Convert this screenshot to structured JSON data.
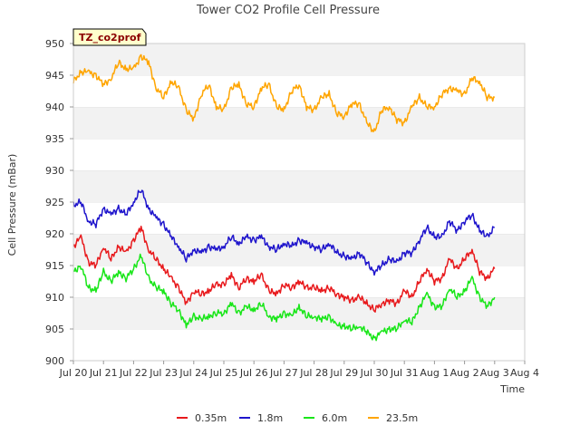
{
  "chart_data": {
    "type": "line",
    "title": "Tower CO2 Profile Cell Pressure",
    "xlabel": "Time",
    "ylabel": "Cell Pressure (mBar)",
    "tag": "TZ_co2prof",
    "ylim": [
      900,
      950
    ],
    "xlim": [
      0,
      15
    ],
    "grid": "horizontal bands",
    "legend_position": "bottom",
    "yticks": [
      900,
      905,
      910,
      915,
      920,
      925,
      930,
      935,
      940,
      945,
      950
    ],
    "xticks": [
      {
        "x": 0,
        "label": "Jul 20"
      },
      {
        "x": 1,
        "label": "Jul 21"
      },
      {
        "x": 2,
        "label": "Jul 22"
      },
      {
        "x": 3,
        "label": "Jul 23"
      },
      {
        "x": 4,
        "label": "Jul 24"
      },
      {
        "x": 5,
        "label": "Jul 25"
      },
      {
        "x": 6,
        "label": "Jul 26"
      },
      {
        "x": 7,
        "label": "Jul 27"
      },
      {
        "x": 8,
        "label": "Jul 28"
      },
      {
        "x": 9,
        "label": "Jul 29"
      },
      {
        "x": 10,
        "label": "Jul 30"
      },
      {
        "x": 11,
        "label": "Jul 31"
      },
      {
        "x": 12,
        "label": "Aug 1"
      },
      {
        "x": 13,
        "label": "Aug 2"
      },
      {
        "x": 14,
        "label": "Aug 3"
      },
      {
        "x": 15,
        "label": "Aug 4"
      }
    ],
    "series": [
      {
        "name": "0.35m",
        "color": "#e8191c",
        "x": [
          0.0,
          0.25,
          0.5,
          0.75,
          1.0,
          1.25,
          1.5,
          1.75,
          2.0,
          2.25,
          2.5,
          2.75,
          3.0,
          3.25,
          3.5,
          3.75,
          4.0,
          4.25,
          4.5,
          4.75,
          5.0,
          5.25,
          5.5,
          5.75,
          6.0,
          6.25,
          6.5,
          6.75,
          7.0,
          7.25,
          7.5,
          7.75,
          8.0,
          8.25,
          8.5,
          8.75,
          9.0,
          9.25,
          9.5,
          9.75,
          10.0,
          10.25,
          10.5,
          10.75,
          11.0,
          11.25,
          11.5,
          11.75,
          12.0,
          12.25,
          12.5,
          12.75,
          13.0,
          13.25,
          13.5,
          13.75,
          14.0
        ],
        "values": [
          918.0,
          919.5,
          915.5,
          915.0,
          918.0,
          916.0,
          918.0,
          917.0,
          919.0,
          921.0,
          917.5,
          916.0,
          914.5,
          913.0,
          911.5,
          909.0,
          911.0,
          910.5,
          911.0,
          912.0,
          912.0,
          913.5,
          911.5,
          913.0,
          912.5,
          913.5,
          911.0,
          910.5,
          912.0,
          911.5,
          912.5,
          911.5,
          911.5,
          911.0,
          911.5,
          910.5,
          910.0,
          909.5,
          910.0,
          909.0,
          908.0,
          909.0,
          909.5,
          909.0,
          911.0,
          910.0,
          912.5,
          914.5,
          912.5,
          913.0,
          916.0,
          914.5,
          916.0,
          917.5,
          914.0,
          913.0,
          914.5
        ]
      },
      {
        "name": "1.8m",
        "color": "#1f15cc",
        "x": [
          0.0,
          0.25,
          0.5,
          0.75,
          1.0,
          1.25,
          1.5,
          1.75,
          2.0,
          2.25,
          2.5,
          2.75,
          3.0,
          3.25,
          3.5,
          3.75,
          4.0,
          4.25,
          4.5,
          4.75,
          5.0,
          5.25,
          5.5,
          5.75,
          6.0,
          6.25,
          6.5,
          6.75,
          7.0,
          7.25,
          7.5,
          7.75,
          8.0,
          8.25,
          8.5,
          8.75,
          9.0,
          9.25,
          9.5,
          9.75,
          10.0,
          10.25,
          10.5,
          10.75,
          11.0,
          11.25,
          11.5,
          11.75,
          12.0,
          12.25,
          12.5,
          12.75,
          13.0,
          13.25,
          13.5,
          13.75,
          14.0
        ],
        "values": [
          924.5,
          925.0,
          922.0,
          921.5,
          924.0,
          923.0,
          924.0,
          923.0,
          925.0,
          927.0,
          924.0,
          922.5,
          921.5,
          919.5,
          918.0,
          916.0,
          917.5,
          917.0,
          918.0,
          917.5,
          918.0,
          919.5,
          918.5,
          919.5,
          919.0,
          919.5,
          918.0,
          917.5,
          918.5,
          918.0,
          919.0,
          918.5,
          918.0,
          917.5,
          918.5,
          917.0,
          916.5,
          916.0,
          917.0,
          915.5,
          914.0,
          915.0,
          916.0,
          915.5,
          917.0,
          917.0,
          919.0,
          921.0,
          919.5,
          919.5,
          922.0,
          920.5,
          922.0,
          923.0,
          920.5,
          919.5,
          921.0
        ]
      },
      {
        "name": "6.0m",
        "color": "#19e619",
        "x": [
          0.0,
          0.25,
          0.5,
          0.75,
          1.0,
          1.25,
          1.5,
          1.75,
          2.0,
          2.25,
          2.5,
          2.75,
          3.0,
          3.25,
          3.5,
          3.75,
          4.0,
          4.25,
          4.5,
          4.75,
          5.0,
          5.25,
          5.5,
          5.75,
          6.0,
          6.25,
          6.5,
          6.75,
          7.0,
          7.25,
          7.5,
          7.75,
          8.0,
          8.25,
          8.5,
          8.75,
          9.0,
          9.25,
          9.5,
          9.75,
          10.0,
          10.25,
          10.5,
          10.75,
          11.0,
          11.25,
          11.5,
          11.75,
          12.0,
          12.25,
          12.5,
          12.75,
          13.0,
          13.25,
          13.5,
          13.75,
          14.0
        ],
        "values": [
          914.0,
          915.0,
          911.5,
          911.0,
          914.0,
          912.5,
          914.0,
          913.0,
          914.5,
          916.5,
          913.0,
          911.5,
          911.0,
          909.0,
          908.0,
          905.5,
          907.0,
          906.5,
          907.0,
          907.5,
          907.5,
          909.0,
          907.5,
          908.5,
          908.0,
          909.0,
          907.0,
          906.5,
          907.5,
          907.0,
          908.5,
          907.0,
          907.0,
          906.5,
          907.0,
          905.5,
          905.5,
          905.0,
          905.5,
          904.5,
          903.5,
          904.5,
          905.0,
          905.0,
          906.5,
          906.0,
          908.5,
          910.5,
          908.5,
          908.5,
          911.5,
          910.0,
          911.0,
          913.0,
          910.0,
          908.5,
          910.0
        ]
      },
      {
        "name": "23.5m",
        "color": "#ffa500",
        "x": [
          0.0,
          0.25,
          0.5,
          0.75,
          1.0,
          1.25,
          1.5,
          1.75,
          2.0,
          2.25,
          2.5,
          2.75,
          3.0,
          3.25,
          3.5,
          3.75,
          4.0,
          4.25,
          4.5,
          4.75,
          5.0,
          5.25,
          5.5,
          5.75,
          6.0,
          6.25,
          6.5,
          6.75,
          7.0,
          7.25,
          7.5,
          7.75,
          8.0,
          8.25,
          8.5,
          8.75,
          9.0,
          9.25,
          9.5,
          9.75,
          10.0,
          10.25,
          10.5,
          10.75,
          11.0,
          11.25,
          11.5,
          11.75,
          12.0,
          12.25,
          12.5,
          12.75,
          13.0,
          13.25,
          13.5,
          13.75,
          14.0
        ],
        "values": [
          944.0,
          945.5,
          945.5,
          945.0,
          943.5,
          944.5,
          947.0,
          946.0,
          946.0,
          948.0,
          947.0,
          943.0,
          941.5,
          944.0,
          943.0,
          939.5,
          938.0,
          942.0,
          943.5,
          940.0,
          939.5,
          943.0,
          943.5,
          940.5,
          940.0,
          943.0,
          943.5,
          940.0,
          939.5,
          942.5,
          943.5,
          940.0,
          939.5,
          941.5,
          942.0,
          939.0,
          938.5,
          940.5,
          940.5,
          937.5,
          936.0,
          939.5,
          940.0,
          938.0,
          937.5,
          940.0,
          941.5,
          940.0,
          940.0,
          942.0,
          943.0,
          942.5,
          942.0,
          944.5,
          944.0,
          941.5,
          941.5
        ]
      }
    ]
  }
}
